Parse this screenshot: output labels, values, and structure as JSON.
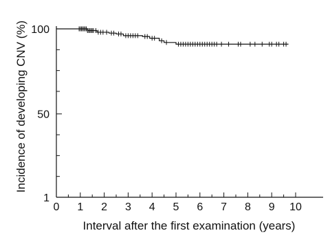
{
  "chart_data": {
    "type": "line",
    "title": "",
    "xlabel": "Interval after the first examination (years)",
    "ylabel": "Incidence of developing CNV (%)",
    "xlim": [
      0,
      10
    ],
    "ylim": [
      1,
      100
    ],
    "x_ticks": [
      0,
      1,
      2,
      3,
      4,
      5,
      6,
      7,
      8,
      9,
      10
    ],
    "x_minor_ticks": [
      0.5,
      1.5,
      2.5,
      3.5,
      4.5,
      5.5,
      6.5,
      7.5,
      8.5,
      9.5
    ],
    "y_ticks": [
      {
        "value": 100,
        "label": "100"
      },
      {
        "value": 50,
        "label": "50"
      },
      {
        "value": 1,
        "label": "1"
      }
    ],
    "y_minor_ticks": [
      87.75,
      75.5,
      63.25,
      37.75,
      25.5,
      13.25
    ],
    "grid": false,
    "legend": "none",
    "series": [
      {
        "step": [
          [
            0,
            100
          ],
          [
            1.3,
            99
          ],
          [
            1.7,
            98
          ],
          [
            2.2,
            97.5
          ],
          [
            2.5,
            97
          ],
          [
            2.8,
            96
          ],
          [
            3.6,
            95.5
          ],
          [
            3.9,
            94.5
          ],
          [
            4.3,
            93
          ],
          [
            4.5,
            92
          ],
          [
            5.0,
            91
          ],
          [
            9.7,
            91
          ]
        ],
        "censored": [
          0.95,
          1.0,
          1.05,
          1.1,
          1.15,
          1.2,
          1.25,
          1.3,
          1.35,
          1.4,
          1.45,
          1.5,
          1.55,
          1.65,
          1.75,
          1.85,
          1.95,
          2.1,
          2.3,
          2.4,
          2.6,
          2.7,
          2.9,
          3.0,
          3.1,
          3.2,
          3.3,
          3.4,
          3.7,
          3.8,
          4.0,
          4.1,
          4.4,
          4.6,
          5.1,
          5.2,
          5.3,
          5.4,
          5.5,
          5.6,
          5.7,
          5.8,
          5.9,
          6.0,
          6.1,
          6.2,
          6.3,
          6.4,
          6.5,
          6.6,
          6.7,
          6.9,
          7.2,
          7.6,
          7.7,
          8.1,
          8.3,
          8.6,
          8.9,
          9.0,
          9.2,
          9.3,
          9.5,
          9.6
        ]
      }
    ]
  }
}
